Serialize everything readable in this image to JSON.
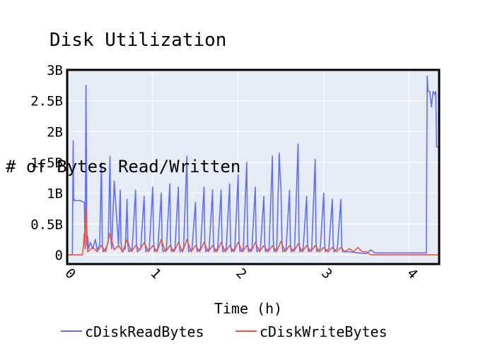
{
  "chart_data": {
    "type": "line",
    "title": "Disk Utilization",
    "xlabel": "Time (h)",
    "ylabel": "# of Bytes Read/Written",
    "xlim": [
      0,
      4.35
    ],
    "ylim": [
      -0.15,
      3.0
    ],
    "x_ticks": [
      0,
      1,
      2,
      3,
      4
    ],
    "x_tick_labels": [
      "0",
      "1",
      "2",
      "3",
      "4"
    ],
    "y_ticks": [
      0,
      0.5,
      1,
      1.5,
      2,
      2.5,
      3
    ],
    "y_tick_labels": [
      "0",
      "0.5B",
      "1B",
      "1.5B",
      "2B",
      "2.5B",
      "3B"
    ],
    "grid": true,
    "legend": "bottom",
    "series": [
      {
        "name": "cDiskReadBytes",
        "color": "#636efa",
        "x": [
          0,
          0.06,
          0.07,
          0.075,
          0.08,
          0.09,
          0.15,
          0.2,
          0.21,
          0.22,
          0.225,
          0.23,
          0.24,
          0.25,
          0.27,
          0.3,
          0.33,
          0.35,
          0.38,
          0.4,
          0.41,
          0.42,
          0.45,
          0.48,
          0.5,
          0.51,
          0.52,
          0.55,
          0.6,
          0.62,
          0.63,
          0.64,
          0.68,
          0.7,
          0.71,
          0.72,
          0.76,
          0.8,
          0.81,
          0.82,
          0.86,
          0.9,
          0.91,
          0.92,
          0.96,
          1.0,
          1.01,
          1.02,
          1.06,
          1.1,
          1.11,
          1.12,
          1.16,
          1.2,
          1.21,
          1.22,
          1.26,
          1.3,
          1.31,
          1.32,
          1.36,
          1.4,
          1.41,
          1.42,
          1.46,
          1.5,
          1.51,
          1.52,
          1.56,
          1.6,
          1.61,
          1.62,
          1.66,
          1.7,
          1.71,
          1.72,
          1.76,
          1.8,
          1.81,
          1.82,
          1.86,
          1.9,
          1.91,
          1.92,
          1.96,
          2.0,
          2.01,
          2.02,
          2.06,
          2.1,
          2.11,
          2.12,
          2.16,
          2.2,
          2.21,
          2.22,
          2.26,
          2.3,
          2.31,
          2.32,
          2.36,
          2.4,
          2.41,
          2.42,
          2.45,
          2.48,
          2.49,
          2.5,
          2.51,
          2.52,
          2.56,
          2.6,
          2.61,
          2.62,
          2.66,
          2.7,
          2.71,
          2.72,
          2.76,
          2.8,
          2.81,
          2.82,
          2.86,
          2.9,
          2.91,
          2.92,
          2.96,
          3.0,
          3.01,
          3.02,
          3.06,
          3.1,
          3.11,
          3.12,
          3.16,
          3.2,
          3.21,
          3.22,
          3.3,
          3.4,
          3.5,
          3.55,
          3.6,
          3.7,
          3.8,
          3.9,
          4.0,
          4.1,
          4.2,
          4.21,
          4.22,
          4.24,
          4.26,
          4.28,
          4.3,
          4.31,
          4.32,
          4.35
        ],
        "values": [
          0,
          0,
          1.85,
          0.88,
          0.9,
          0.88,
          0.88,
          0.85,
          0.1,
          2.75,
          1.6,
          0.15,
          0.3,
          0.1,
          0.2,
          0.1,
          0.25,
          0.08,
          0.15,
          1.5,
          0.2,
          0.05,
          0.1,
          0.2,
          1.6,
          0.3,
          0.1,
          1.2,
          0.15,
          1.05,
          0.2,
          0.05,
          0.1,
          0.9,
          0.15,
          0.05,
          0.1,
          1.05,
          0.2,
          0.05,
          0.1,
          0.95,
          0.2,
          0.05,
          0.1,
          1.1,
          0.25,
          0.05,
          0.1,
          1.0,
          0.15,
          0.05,
          0.1,
          1.15,
          0.2,
          0.05,
          0.1,
          1.1,
          0.2,
          0.05,
          0.1,
          1.6,
          0.25,
          0.05,
          0.1,
          0.85,
          0.2,
          0.05,
          0.1,
          1.1,
          0.2,
          0.05,
          0.1,
          1.05,
          0.2,
          0.05,
          0.1,
          1.05,
          0.2,
          0.05,
          0.1,
          1.15,
          0.2,
          0.05,
          0.1,
          1.3,
          0.2,
          0.05,
          0.1,
          1.5,
          0.2,
          0.05,
          0.1,
          1.1,
          0.2,
          0.05,
          0.1,
          0.95,
          0.2,
          0.05,
          0.1,
          1.6,
          0.25,
          0.05,
          0.1,
          1.65,
          1.3,
          1.1,
          0.3,
          0.05,
          0.1,
          1.05,
          0.2,
          0.05,
          0.1,
          1.8,
          0.3,
          0.05,
          0.1,
          0.95,
          0.2,
          0.05,
          0.1,
          1.55,
          0.2,
          0.05,
          0.1,
          1.0,
          0.2,
          0.05,
          0.1,
          0.9,
          0.2,
          0.05,
          0.1,
          0.9,
          0.15,
          0.05,
          0.05,
          0.03,
          0.02,
          0.08,
          0.03,
          0.03,
          0.03,
          0.03,
          0.03,
          0.03,
          0.03,
          2.9,
          2.65,
          2.65,
          2.4,
          2.65,
          2.6,
          2.65,
          1.75,
          1.75
        ]
      },
      {
        "name": "cDiskWriteBytes",
        "color": "#ef553b",
        "x": [
          0,
          0.18,
          0.2,
          0.21,
          0.22,
          0.24,
          0.3,
          0.35,
          0.4,
          0.45,
          0.5,
          0.55,
          0.6,
          0.65,
          0.7,
          0.75,
          0.8,
          0.85,
          0.9,
          0.95,
          1.0,
          1.05,
          1.1,
          1.15,
          1.2,
          1.25,
          1.3,
          1.35,
          1.4,
          1.45,
          1.5,
          1.55,
          1.6,
          1.65,
          1.7,
          1.75,
          1.8,
          1.85,
          1.9,
          1.95,
          2.0,
          2.05,
          2.1,
          2.15,
          2.2,
          2.25,
          2.3,
          2.35,
          2.4,
          2.45,
          2.5,
          2.55,
          2.6,
          2.65,
          2.7,
          2.75,
          2.8,
          2.85,
          2.9,
          2.95,
          3.0,
          3.05,
          3.1,
          3.15,
          3.2,
          3.25,
          3.3,
          3.35,
          3.4,
          3.45,
          3.5,
          3.55,
          4.35
        ],
        "values": [
          0,
          0,
          0.35,
          0.1,
          0.8,
          0.05,
          0.12,
          0.05,
          0.15,
          0.05,
          0.35,
          0.08,
          0.15,
          0.05,
          0.25,
          0.05,
          0.15,
          0.08,
          0.2,
          0.05,
          0.15,
          0.05,
          0.25,
          0.05,
          0.15,
          0.05,
          0.2,
          0.05,
          0.25,
          0.05,
          0.15,
          0.05,
          0.2,
          0.05,
          0.15,
          0.05,
          0.2,
          0.05,
          0.15,
          0.05,
          0.2,
          0.05,
          0.15,
          0.05,
          0.2,
          0.05,
          0.15,
          0.05,
          0.15,
          0.05,
          0.22,
          0.05,
          0.15,
          0.05,
          0.18,
          0.05,
          0.15,
          0.05,
          0.15,
          0.05,
          0.12,
          0.05,
          0.12,
          0.05,
          0.12,
          0.05,
          0.1,
          0.05,
          0.12,
          0.05,
          0.05,
          0,
          0
        ]
      }
    ]
  }
}
